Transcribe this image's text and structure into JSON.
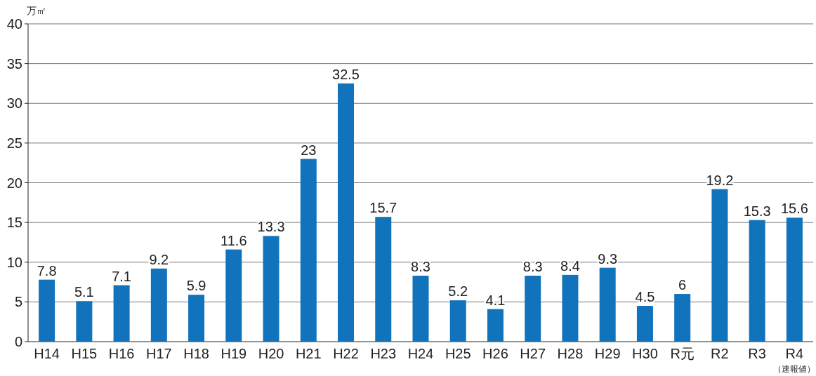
{
  "chart_data": {
    "type": "bar",
    "ylabel": "万㎡",
    "categories": [
      "H14",
      "H15",
      "H16",
      "H17",
      "H18",
      "H19",
      "H20",
      "H21",
      "H22",
      "H23",
      "H24",
      "H25",
      "H26",
      "H27",
      "H28",
      "H29",
      "H30",
      "R元",
      "R2",
      "R3",
      "R4"
    ],
    "values": [
      7.8,
      5.1,
      7.1,
      9.2,
      5.9,
      11.6,
      13.3,
      23,
      32.5,
      15.7,
      8.3,
      5.2,
      4.1,
      8.3,
      8.4,
      9.3,
      4.5,
      6,
      19.2,
      15.3,
      15.6
    ],
    "color": "#1273bd",
    "ylim": [
      0,
      40
    ],
    "yticks": [
      0,
      5,
      10,
      15,
      20,
      25,
      30,
      35,
      40
    ],
    "grid": "y",
    "data_labels": true,
    "annotations": [
      "（速報値）"
    ]
  }
}
